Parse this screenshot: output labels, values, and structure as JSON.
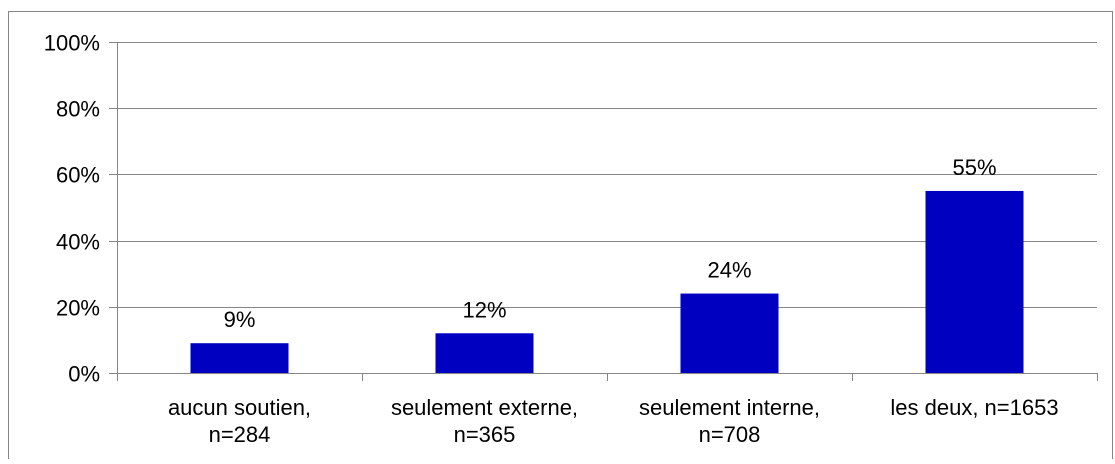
{
  "chart_data": {
    "type": "bar",
    "title": "",
    "xlabel": "",
    "ylabel": "",
    "categories": [
      [
        "aucun soutien,",
        "n=284"
      ],
      [
        "seulement externe,",
        "n=365"
      ],
      [
        "seulement interne,",
        "n=708"
      ],
      [
        "les deux, n=1653"
      ]
    ],
    "values": [
      9,
      12,
      24,
      55
    ],
    "value_labels": [
      "9%",
      "12%",
      "24%",
      "55%"
    ],
    "ylim": [
      0,
      100
    ],
    "yticks": [
      "0%",
      "20%",
      "40%",
      "60%",
      "80%",
      "100%"
    ],
    "grid": true,
    "legend": "none",
    "colors": {
      "bar": "#0000C0",
      "grid": "#868686",
      "border": "#868686"
    }
  }
}
